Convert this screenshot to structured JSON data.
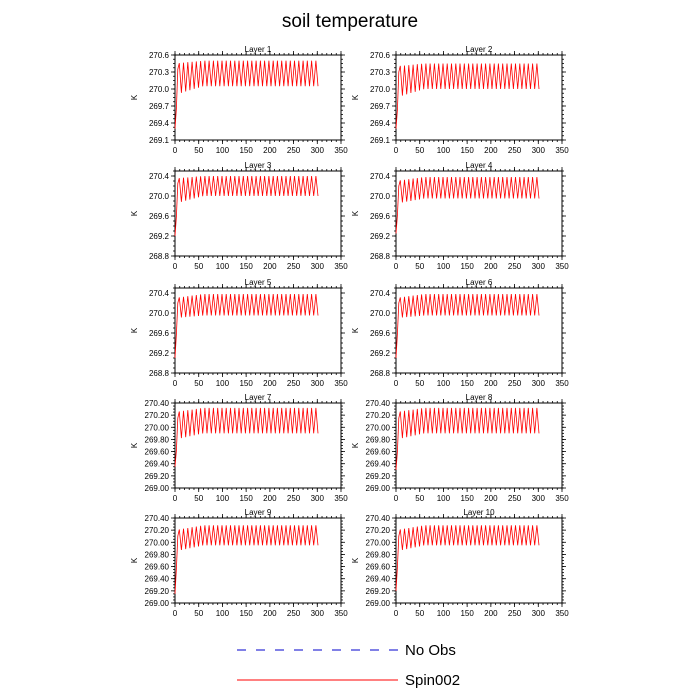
{
  "title": "soil temperature",
  "legend": {
    "items": [
      {
        "label": "No Obs",
        "color": "#0000cc",
        "style": "dashed"
      },
      {
        "label": "Spin002",
        "color": "#ff0000",
        "style": "solid"
      }
    ]
  },
  "chart_data": [
    {
      "type": "line",
      "title": "Layer 1",
      "ylabel": "K",
      "xlim": [
        0,
        350
      ],
      "xticks": [
        0,
        50,
        100,
        150,
        200,
        250,
        300,
        350
      ],
      "ylim": [
        269.1,
        270.6
      ],
      "yticks": [
        "269.1",
        "269.4",
        "269.7",
        "270.0",
        "270.3",
        "270.6"
      ],
      "series": [
        {
          "name": "Spin002",
          "color": "#ff0000",
          "x_end": 305,
          "start": 269.3,
          "upper": 270.5,
          "lower": 270.05,
          "early_upper": 270.45,
          "early_lower": 269.9
        }
      ]
    },
    {
      "type": "line",
      "title": "Layer 2",
      "ylabel": "K",
      "xlim": [
        0,
        350
      ],
      "xticks": [
        0,
        50,
        100,
        150,
        200,
        250,
        300,
        350
      ],
      "ylim": [
        269.1,
        270.6
      ],
      "yticks": [
        "269.1",
        "269.4",
        "269.7",
        "270.0",
        "270.3",
        "270.6"
      ],
      "series": [
        {
          "name": "Spin002",
          "color": "#ff0000",
          "x_end": 305,
          "start": 269.3,
          "upper": 270.45,
          "lower": 270.0,
          "early_upper": 270.4,
          "early_lower": 269.85
        }
      ]
    },
    {
      "type": "line",
      "title": "Layer 3",
      "ylabel": "K",
      "xlim": [
        0,
        350
      ],
      "xticks": [
        0,
        50,
        100,
        150,
        200,
        250,
        300,
        350
      ],
      "ylim": [
        268.8,
        270.5
      ],
      "yticks": [
        "268.8",
        "269.2",
        "269.6",
        "270.0",
        "270.4"
      ],
      "series": [
        {
          "name": "Spin002",
          "color": "#ff0000",
          "x_end": 305,
          "start": 269.2,
          "upper": 270.4,
          "lower": 270.0,
          "early_upper": 270.35,
          "early_lower": 269.85
        }
      ]
    },
    {
      "type": "line",
      "title": "Layer 4",
      "ylabel": "K",
      "xlim": [
        0,
        350
      ],
      "xticks": [
        0,
        50,
        100,
        150,
        200,
        250,
        300,
        350
      ],
      "ylim": [
        268.8,
        270.5
      ],
      "yticks": [
        "268.8",
        "269.2",
        "269.6",
        "270.0",
        "270.4"
      ],
      "series": [
        {
          "name": "Spin002",
          "color": "#ff0000",
          "x_end": 305,
          "start": 269.25,
          "upper": 270.38,
          "lower": 269.95,
          "early_upper": 270.3,
          "early_lower": 269.85
        }
      ]
    },
    {
      "type": "line",
      "title": "Layer 5",
      "ylabel": "K",
      "xlim": [
        0,
        350
      ],
      "xticks": [
        0,
        50,
        100,
        150,
        200,
        250,
        300,
        350
      ],
      "ylim": [
        268.8,
        270.5
      ],
      "yticks": [
        "268.8",
        "269.2",
        "269.6",
        "270.0",
        "270.4"
      ],
      "series": [
        {
          "name": "Spin002",
          "color": "#ff0000",
          "x_end": 305,
          "start": 269.1,
          "upper": 270.38,
          "lower": 269.95,
          "early_upper": 270.3,
          "early_lower": 269.9
        }
      ]
    },
    {
      "type": "line",
      "title": "Layer 6",
      "ylabel": "K",
      "xlim": [
        0,
        350
      ],
      "xticks": [
        0,
        50,
        100,
        150,
        200,
        250,
        300,
        350
      ],
      "ylim": [
        268.8,
        270.5
      ],
      "yticks": [
        "268.8",
        "269.2",
        "269.6",
        "270.0",
        "270.4"
      ],
      "series": [
        {
          "name": "Spin002",
          "color": "#ff0000",
          "x_end": 305,
          "start": 269.1,
          "upper": 270.38,
          "lower": 269.95,
          "early_upper": 270.3,
          "early_lower": 269.9
        }
      ]
    },
    {
      "type": "line",
      "title": "Layer 7",
      "ylabel": "K",
      "xlim": [
        0,
        350
      ],
      "xticks": [
        0,
        50,
        100,
        150,
        200,
        250,
        300,
        350
      ],
      "ylim": [
        269.0,
        270.4
      ],
      "yticks": [
        "269.00",
        "269.20",
        "269.40",
        "269.60",
        "269.80",
        "270.00",
        "270.20",
        "270.40"
      ],
      "series": [
        {
          "name": "Spin002",
          "color": "#ff0000",
          "x_end": 305,
          "start": 269.35,
          "upper": 270.32,
          "lower": 269.9,
          "early_upper": 270.25,
          "early_lower": 269.8
        }
      ]
    },
    {
      "type": "line",
      "title": "Layer 8",
      "ylabel": "K",
      "xlim": [
        0,
        350
      ],
      "xticks": [
        0,
        50,
        100,
        150,
        200,
        250,
        300,
        350
      ],
      "ylim": [
        269.0,
        270.4
      ],
      "yticks": [
        "269.00",
        "269.20",
        "269.40",
        "269.60",
        "269.80",
        "270.00",
        "270.20",
        "270.40"
      ],
      "series": [
        {
          "name": "Spin002",
          "color": "#ff0000",
          "x_end": 305,
          "start": 269.3,
          "upper": 270.32,
          "lower": 269.9,
          "early_upper": 270.25,
          "early_lower": 269.8
        }
      ]
    },
    {
      "type": "line",
      "title": "Layer 9",
      "ylabel": "K",
      "xlim": [
        0,
        350
      ],
      "xticks": [
        0,
        50,
        100,
        150,
        200,
        250,
        300,
        350
      ],
      "ylim": [
        269.0,
        270.4
      ],
      "yticks": [
        "269.00",
        "269.20",
        "269.40",
        "269.60",
        "269.80",
        "270.00",
        "270.20",
        "270.40"
      ],
      "series": [
        {
          "name": "Spin002",
          "color": "#ff0000",
          "x_end": 305,
          "start": 269.15,
          "upper": 270.28,
          "lower": 269.95,
          "early_upper": 270.2,
          "early_lower": 269.85
        }
      ]
    },
    {
      "type": "line",
      "title": "Layer 10",
      "ylabel": "K",
      "xlim": [
        0,
        350
      ],
      "xticks": [
        0,
        50,
        100,
        150,
        200,
        250,
        300,
        350
      ],
      "ylim": [
        269.0,
        270.4
      ],
      "yticks": [
        "269.00",
        "269.20",
        "269.40",
        "269.60",
        "269.80",
        "270.00",
        "270.20",
        "270.40"
      ],
      "series": [
        {
          "name": "Spin002",
          "color": "#ff0000",
          "x_end": 305,
          "start": 269.2,
          "upper": 270.28,
          "lower": 269.95,
          "early_upper": 270.2,
          "early_lower": 269.85
        }
      ]
    }
  ]
}
